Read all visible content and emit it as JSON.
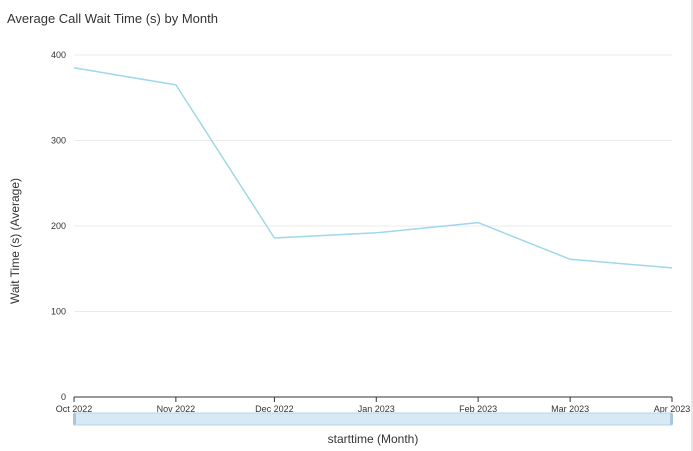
{
  "chart_data": {
    "type": "line",
    "title": "Average Call Wait Time (s) by Month",
    "xlabel": "starttime (Month)",
    "ylabel": "Wait Time (s) (Average)",
    "categories": [
      "Oct 2022",
      "Nov 2022",
      "Dec 2022",
      "Jan 2023",
      "Feb 2023",
      "Mar 2023",
      "Apr 2023"
    ],
    "x_dates": [
      "2022-10-01",
      "2022-11-01",
      "2022-12-01",
      "2023-01-01",
      "2023-02-01",
      "2023-03-01",
      "2023-04-01"
    ],
    "series": [
      {
        "values": [
          385,
          365,
          186,
          192,
          204,
          161,
          151
        ]
      }
    ],
    "ylim": [
      0,
      400
    ],
    "yticks": [
      0,
      100,
      200,
      300,
      400
    ],
    "grid": true,
    "legend": "none"
  },
  "colors": {
    "line": "#9ed8ea",
    "grid": "#ebebeb",
    "axis": "#333333",
    "text": "#333333",
    "scrollbar_fill": "#d6e9f5",
    "scrollbar_border": "#b5d3e8"
  }
}
